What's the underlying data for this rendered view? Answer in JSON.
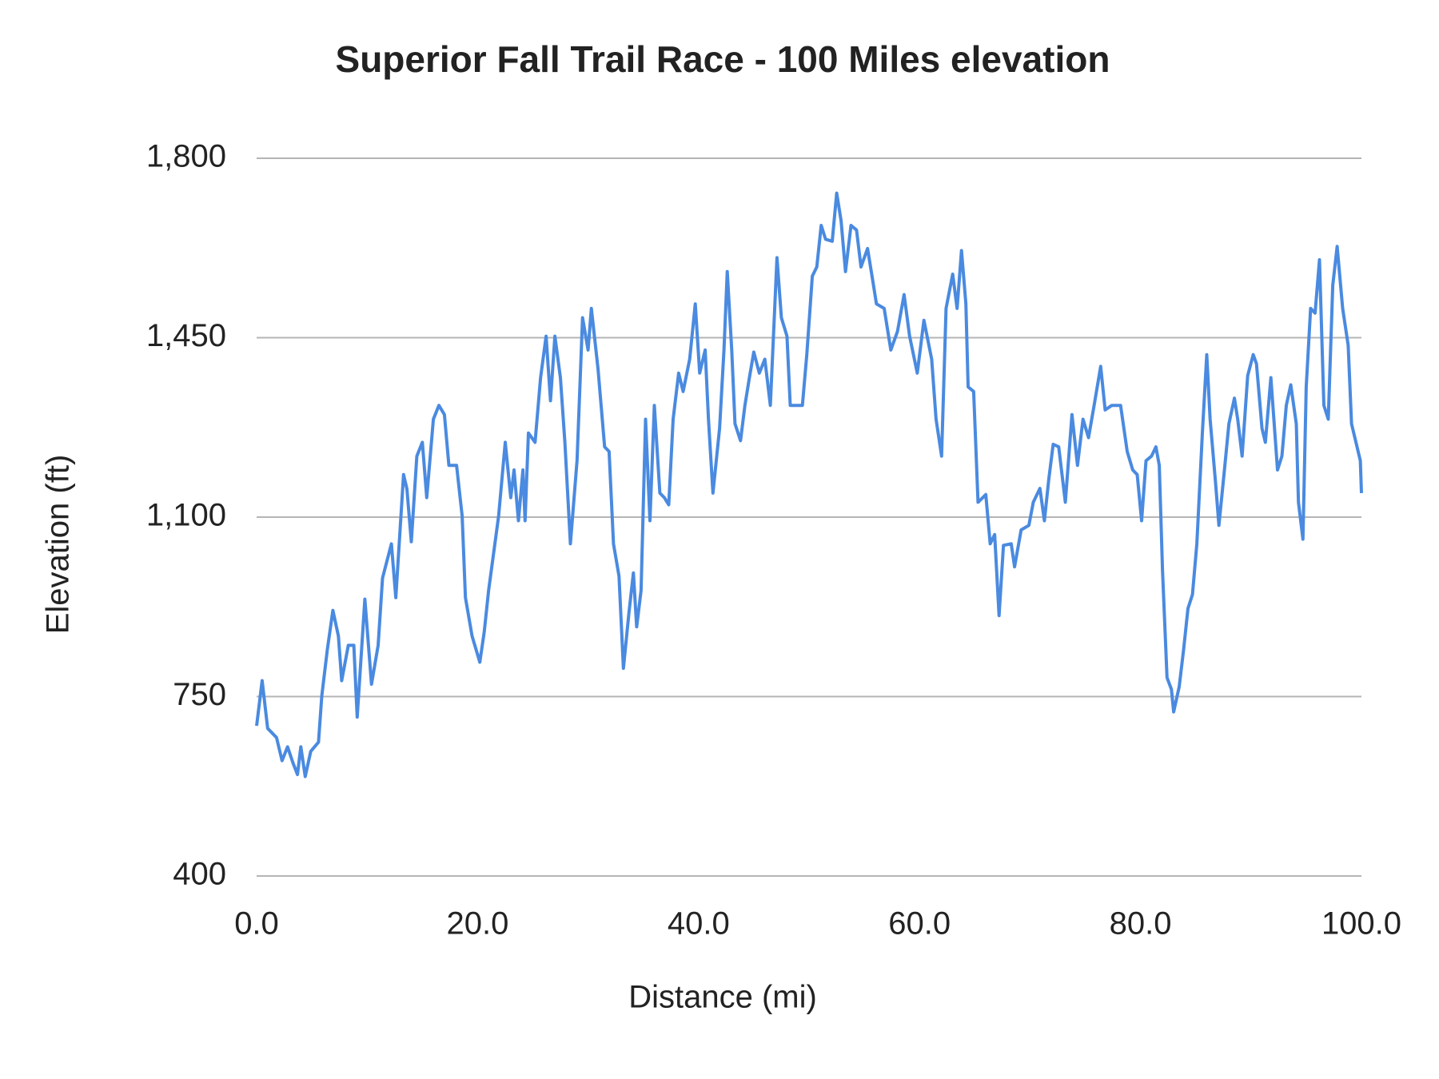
{
  "chart_data": {
    "type": "line",
    "title": "Superior Fall Trail Race - 100 Miles elevation",
    "x_label": "Distance (mi)",
    "y_label": "Elevation (ft)",
    "xlim": [
      0,
      100
    ],
    "xticks": [
      {
        "value": 0,
        "label": "0.0"
      },
      {
        "value": 20,
        "label": "20.0"
      },
      {
        "value": 40,
        "label": "40.0"
      },
      {
        "value": 60,
        "label": "60.0"
      },
      {
        "value": 80,
        "label": "80.0"
      },
      {
        "value": 100,
        "label": "100.0"
      }
    ],
    "ylim": [
      400,
      1800
    ],
    "yticks": [
      400,
      750,
      {
        "value": 1100,
        "label": "1,100"
      },
      {
        "value": 1450,
        "label": "1,450"
      },
      {
        "value": 1800,
        "label": "1,800"
      }
    ],
    "grid": true,
    "series": [
      {
        "name": "Elevation",
        "color": "#4a8ae0",
        "x": [
          0,
          0.5,
          1.0,
          1.8,
          2.3,
          2.8,
          3.3,
          3.7,
          4.0,
          4.4,
          4.9,
          5.6,
          5.9,
          6.4,
          6.9,
          7.4,
          7.7,
          8.3,
          8.8,
          9.1,
          9.8,
          10.4,
          11.0,
          11.4,
          12.2,
          12.6,
          13.3,
          13.6,
          14.0,
          14.5,
          15.0,
          15.4,
          16.0,
          16.5,
          17.0,
          17.4,
          18.1,
          18.6,
          18.9,
          19.5,
          20.2,
          20.6,
          21.0,
          21.4,
          21.9,
          22.5,
          23.0,
          23.3,
          23.7,
          24.1,
          24.3,
          24.6,
          25.2,
          25.7,
          26.2,
          26.6,
          27.0,
          27.5,
          27.9,
          28.4,
          29.0,
          29.5,
          30.0,
          30.3,
          30.9,
          31.5,
          31.9,
          32.3,
          32.8,
          33.2,
          33.7,
          34.1,
          34.4,
          34.8,
          35.2,
          35.6,
          36.0,
          36.5,
          36.9,
          37.3,
          37.7,
          38.2,
          38.6,
          39.2,
          39.7,
          40.1,
          40.6,
          40.9,
          41.3,
          41.9,
          42.3,
          42.6,
          43.0,
          43.3,
          43.8,
          44.2,
          44.6,
          45.0,
          45.5,
          46.0,
          46.5,
          47.1,
          47.5,
          48.0,
          48.3,
          49.4,
          49.8,
          50.3,
          50.7,
          51.1,
          51.5,
          52.1,
          52.5,
          52.9,
          53.3,
          53.8,
          54.3,
          54.7,
          55.3,
          55.7,
          56.1,
          56.8,
          57.4,
          58.0,
          58.6,
          59.1,
          59.8,
          60.4,
          61.1,
          61.5,
          62.0,
          62.4,
          63.0,
          63.4,
          63.8,
          64.2,
          64.4,
          64.9,
          65.3,
          66.0,
          66.4,
          66.8,
          67.2,
          67.6,
          68.3,
          68.6,
          69.2,
          69.9,
          70.3,
          70.9,
          71.3,
          71.7,
          72.1,
          72.6,
          73.2,
          73.8,
          74.3,
          74.8,
          75.3,
          75.8,
          76.4,
          76.8,
          77.4,
          78.2,
          78.8,
          79.3,
          79.7,
          80.1,
          80.5,
          81.0,
          81.4,
          81.7,
          82.0,
          82.4,
          82.8,
          83.0,
          83.5,
          83.9,
          84.3,
          84.7,
          85.1,
          85.6,
          86.0,
          86.3,
          86.8,
          87.1,
          87.6,
          88.0,
          88.5,
          88.8,
          89.2,
          89.7,
          90.2,
          90.5,
          91.0,
          91.3,
          91.8,
          92.4,
          92.8,
          93.2,
          93.6,
          94.1,
          94.3,
          94.7,
          95.0,
          95.4,
          95.8,
          96.2,
          96.6,
          97.0,
          97.4,
          97.8,
          98.3,
          98.8,
          99.1,
          99.6,
          99.9,
          100.0
        ],
        "values": [
          693,
          781,
          688,
          670,
          625,
          652,
          620,
          598,
          652,
          594,
          643,
          661,
          751,
          841,
          918,
          868,
          781,
          850,
          850,
          710,
          940,
          774,
          850,
          981,
          1048,
          943,
          1183,
          1155,
          1052,
          1219,
          1246,
          1138,
          1291,
          1318,
          1300,
          1201,
          1201,
          1102,
          943,
          868,
          817,
          876,
          957,
          1021,
          1102,
          1246,
          1138,
          1192,
          1093,
          1192,
          1093,
          1264,
          1246,
          1372,
          1453,
          1327,
          1453,
          1372,
          1246,
          1048,
          1210,
          1489,
          1426,
          1507,
          1390,
          1237,
          1228,
          1048,
          985,
          805,
          913,
          991,
          886,
          957,
          1291,
          1093,
          1318,
          1147,
          1138,
          1124,
          1291,
          1381,
          1345,
          1408,
          1516,
          1381,
          1426,
          1291,
          1147,
          1273,
          1426,
          1579,
          1426,
          1282,
          1249,
          1318,
          1372,
          1422,
          1381,
          1408,
          1318,
          1606,
          1489,
          1453,
          1318,
          1318,
          1417,
          1570,
          1588,
          1669,
          1642,
          1638,
          1732,
          1678,
          1579,
          1669,
          1660,
          1588,
          1624,
          1570,
          1516,
          1507,
          1426,
          1462,
          1534,
          1453,
          1381,
          1484,
          1408,
          1291,
          1219,
          1507,
          1574,
          1507,
          1620,
          1516,
          1354,
          1345,
          1129,
          1144,
          1048,
          1066,
          908,
          1045,
          1048,
          1003,
          1075,
          1084,
          1129,
          1156,
          1093,
          1174,
          1242,
          1237,
          1129,
          1300,
          1201,
          1291,
          1255,
          1318,
          1394,
          1309,
          1318,
          1318,
          1228,
          1192,
          1183,
          1093,
          1210,
          1219,
          1237,
          1201,
          994,
          787,
          764,
          720,
          769,
          841,
          922,
          949,
          1048,
          1264,
          1417,
          1291,
          1165,
          1084,
          1192,
          1282,
          1332,
          1291,
          1219,
          1376,
          1417,
          1399,
          1273,
          1246,
          1372,
          1192,
          1219,
          1318,
          1358,
          1282,
          1129,
          1057,
          1354,
          1507,
          1498,
          1602,
          1318,
          1291,
          1552,
          1628,
          1507,
          1435,
          1282,
          1237,
          1210,
          1147
        ]
      }
    ]
  }
}
